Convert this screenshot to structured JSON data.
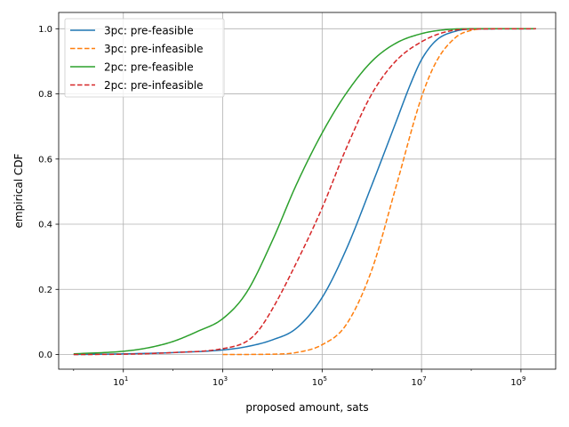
{
  "chart_data": {
    "type": "line",
    "xlabel": "proposed amount, sats",
    "ylabel": "empirical CDF",
    "xscale": "log",
    "xlim": [
      0.5,
      5000000000
    ],
    "ylim": [
      -0.045,
      1.05
    ],
    "grid": true,
    "legend_position": "top-left",
    "x_ticks": [
      {
        "value": 10,
        "base": "10",
        "exp": "1"
      },
      {
        "value": 1000,
        "base": "10",
        "exp": "3"
      },
      {
        "value": 100000,
        "base": "10",
        "exp": "5"
      },
      {
        "value": 10000000,
        "base": "10",
        "exp": "7"
      },
      {
        "value": 1000000000,
        "base": "10",
        "exp": "9"
      }
    ],
    "y_ticks": [
      {
        "value": 0.0,
        "label": "0.0"
      },
      {
        "value": 0.2,
        "label": "0.2"
      },
      {
        "value": 0.4,
        "label": "0.4"
      },
      {
        "value": 0.6,
        "label": "0.6"
      },
      {
        "value": 0.8,
        "label": "0.8"
      },
      {
        "value": 1.0,
        "label": "1.0"
      }
    ],
    "series": [
      {
        "name": "3pc: pre-feasible",
        "color": "#1f77b4",
        "dash": "solid",
        "points": [
          [
            1,
            0.0
          ],
          [
            10,
            0.002
          ],
          [
            100,
            0.006
          ],
          [
            1000,
            0.014
          ],
          [
            3000,
            0.024
          ],
          [
            10000,
            0.045
          ],
          [
            30000,
            0.08
          ],
          [
            100000,
            0.175
          ],
          [
            300000,
            0.32
          ],
          [
            1000000,
            0.52
          ],
          [
            3000000,
            0.71
          ],
          [
            6000000,
            0.83
          ],
          [
            10000000,
            0.905
          ],
          [
            20000000,
            0.965
          ],
          [
            50000000,
            0.993
          ],
          [
            100000000,
            0.999
          ],
          [
            2000000000,
            1.0
          ]
        ]
      },
      {
        "name": "3pc: pre-infeasible",
        "color": "#ff7f0e",
        "dash": "dashed",
        "points": [
          [
            1000,
            0.0
          ],
          [
            10000,
            0.001
          ],
          [
            30000,
            0.006
          ],
          [
            100000,
            0.03
          ],
          [
            300000,
            0.09
          ],
          [
            1000000,
            0.26
          ],
          [
            3000000,
            0.51
          ],
          [
            10000000,
            0.79
          ],
          [
            20000000,
            0.9
          ],
          [
            50000000,
            0.975
          ],
          [
            100000000,
            0.995
          ],
          [
            200000000,
            1.0
          ],
          [
            2000000000,
            1.0
          ]
        ]
      },
      {
        "name": "2pc: pre-feasible",
        "color": "#2ca02c",
        "dash": "solid",
        "points": [
          [
            1,
            0.002
          ],
          [
            10,
            0.01
          ],
          [
            30,
            0.02
          ],
          [
            100,
            0.04
          ],
          [
            300,
            0.07
          ],
          [
            1000,
            0.11
          ],
          [
            3000,
            0.19
          ],
          [
            10000,
            0.35
          ],
          [
            30000,
            0.52
          ],
          [
            100000,
            0.68
          ],
          [
            300000,
            0.8
          ],
          [
            1000000,
            0.9
          ],
          [
            3000000,
            0.955
          ],
          [
            10000000,
            0.985
          ],
          [
            30000000,
            0.997
          ],
          [
            100000000,
            1.0
          ],
          [
            2000000000,
            1.0
          ]
        ]
      },
      {
        "name": "2pc: pre-infeasible",
        "color": "#d62728",
        "dash": "dashed",
        "points": [
          [
            1,
            0.0
          ],
          [
            10,
            0.001
          ],
          [
            100,
            0.006
          ],
          [
            1000,
            0.018
          ],
          [
            3000,
            0.04
          ],
          [
            5000,
            0.07
          ],
          [
            10000,
            0.14
          ],
          [
            30000,
            0.28
          ],
          [
            100000,
            0.45
          ],
          [
            300000,
            0.63
          ],
          [
            1000000,
            0.8
          ],
          [
            3000000,
            0.9
          ],
          [
            10000000,
            0.96
          ],
          [
            30000000,
            0.99
          ],
          [
            100000000,
            0.999
          ],
          [
            2000000000,
            1.0
          ]
        ]
      }
    ]
  }
}
